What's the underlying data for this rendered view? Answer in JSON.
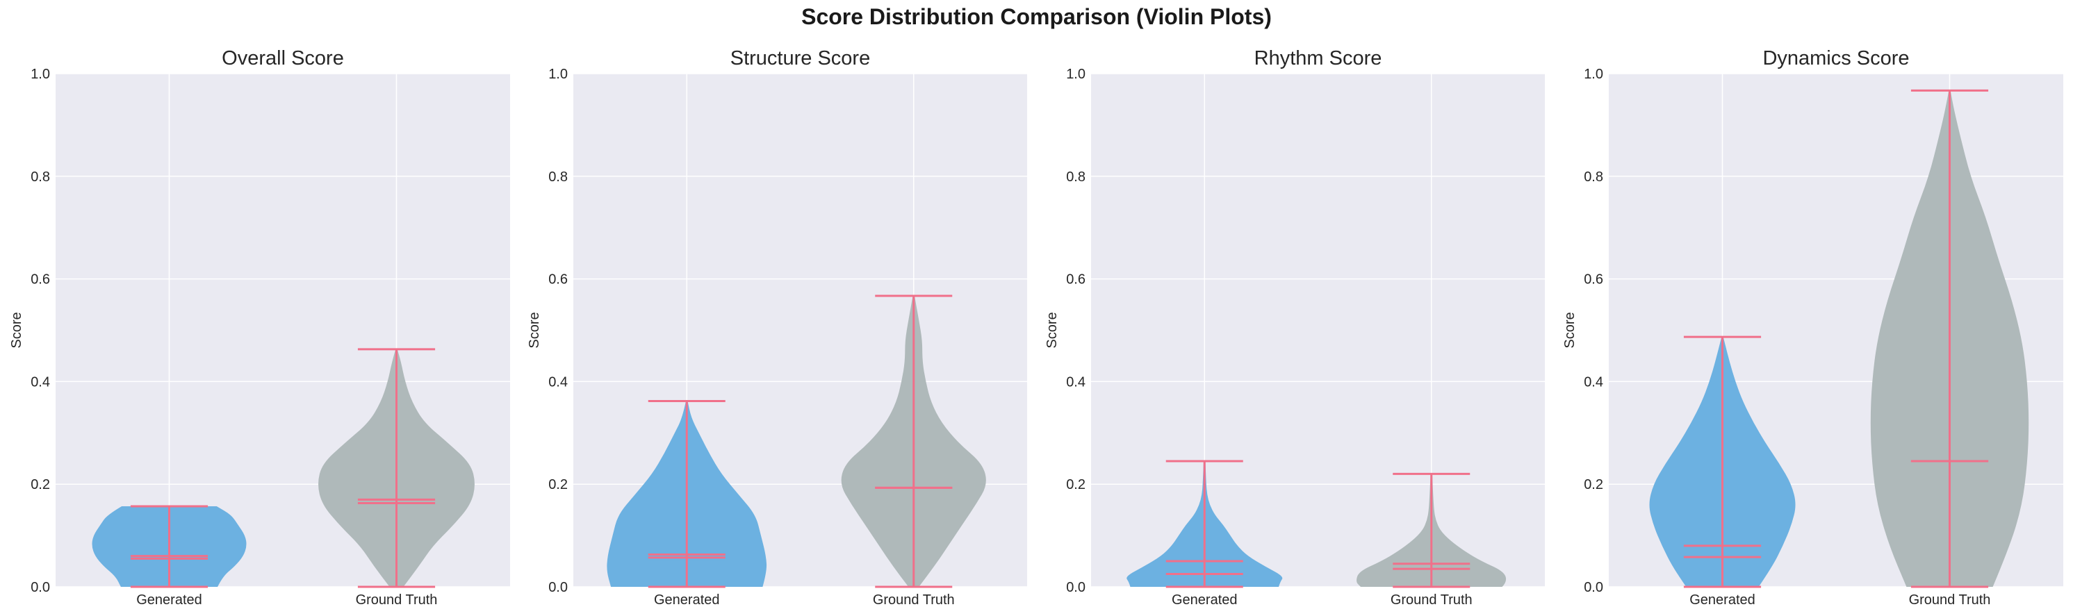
{
  "figure_title": "Score Distribution Comparison (Violin Plots)",
  "colors": {
    "plot_bg": "#eaeaf2",
    "grid": "#ffffff",
    "generated": "#6cb1e1",
    "ground_truth": "#afb9ba",
    "lines": "#f0708a",
    "text": "#262626"
  },
  "chart_data": [
    {
      "type": "violin",
      "title": "Overall Score",
      "ylabel": "Score",
      "ylim": [
        0,
        1
      ],
      "yticks": [
        "0.0",
        "0.2",
        "0.4",
        "0.6",
        "0.8",
        "1.0"
      ],
      "grid": true,
      "categories": [
        "Generated",
        "Ground Truth"
      ],
      "violins": [
        {
          "category": "Generated",
          "min": 0.0,
          "max": 0.157,
          "mean": 0.06,
          "median": 0.055,
          "density": [
            [
              0.0,
              0.56
            ],
            [
              0.02,
              0.62
            ],
            [
              0.04,
              0.76
            ],
            [
              0.06,
              0.86
            ],
            [
              0.08,
              0.9
            ],
            [
              0.1,
              0.88
            ],
            [
              0.12,
              0.8
            ],
            [
              0.14,
              0.72
            ],
            [
              0.157,
              0.55
            ]
          ]
        },
        {
          "category": "Ground Truth",
          "min": 0.0,
          "max": 0.463,
          "mean": 0.17,
          "median": 0.163,
          "density": [
            [
              0.0,
              0.08
            ],
            [
              0.04,
              0.26
            ],
            [
              0.08,
              0.42
            ],
            [
              0.12,
              0.66
            ],
            [
              0.16,
              0.86
            ],
            [
              0.2,
              0.92
            ],
            [
              0.24,
              0.86
            ],
            [
              0.28,
              0.6
            ],
            [
              0.32,
              0.32
            ],
            [
              0.36,
              0.18
            ],
            [
              0.4,
              0.1
            ],
            [
              0.44,
              0.05
            ],
            [
              0.463,
              0.01
            ]
          ]
        }
      ]
    },
    {
      "type": "violin",
      "title": "Structure Score",
      "ylabel": "Score",
      "ylim": [
        0,
        1
      ],
      "yticks": [
        "0.0",
        "0.2",
        "0.4",
        "0.6",
        "0.8",
        "1.0"
      ],
      "grid": true,
      "categories": [
        "Generated",
        "Ground Truth"
      ],
      "violins": [
        {
          "category": "Generated",
          "min": 0.0,
          "max": 0.362,
          "mean": 0.063,
          "median": 0.057,
          "density": [
            [
              0.0,
              0.88
            ],
            [
              0.03,
              0.93
            ],
            [
              0.06,
              0.92
            ],
            [
              0.1,
              0.86
            ],
            [
              0.14,
              0.8
            ],
            [
              0.18,
              0.6
            ],
            [
              0.22,
              0.4
            ],
            [
              0.26,
              0.26
            ],
            [
              0.3,
              0.14
            ],
            [
              0.33,
              0.05
            ],
            [
              0.362,
              0.01
            ]
          ]
        },
        {
          "category": "Ground Truth",
          "min": 0.0,
          "max": 0.567,
          "mean": 0.193,
          "median": 0.193,
          "density": [
            [
              0.0,
              0.06
            ],
            [
              0.04,
              0.24
            ],
            [
              0.08,
              0.4
            ],
            [
              0.12,
              0.56
            ],
            [
              0.16,
              0.72
            ],
            [
              0.2,
              0.86
            ],
            [
              0.24,
              0.8
            ],
            [
              0.28,
              0.52
            ],
            [
              0.32,
              0.32
            ],
            [
              0.36,
              0.2
            ],
            [
              0.4,
              0.14
            ],
            [
              0.44,
              0.1
            ],
            [
              0.48,
              0.1
            ],
            [
              0.52,
              0.06
            ],
            [
              0.567,
              0.01
            ]
          ]
        }
      ]
    },
    {
      "type": "violin",
      "title": "Rhythm Score",
      "ylabel": "Score",
      "ylim": [
        0,
        1
      ],
      "yticks": [
        "0.0",
        "0.2",
        "0.4",
        "0.6",
        "0.8",
        "1.0"
      ],
      "grid": true,
      "categories": [
        "Generated",
        "Ground Truth"
      ],
      "violins": [
        {
          "category": "Generated",
          "min": 0.0,
          "max": 0.245,
          "mean": 0.05,
          "median": 0.025,
          "density": [
            [
              0.0,
              0.86
            ],
            [
              0.01,
              0.88
            ],
            [
              0.02,
              0.92
            ],
            [
              0.04,
              0.7
            ],
            [
              0.06,
              0.5
            ],
            [
              0.08,
              0.38
            ],
            [
              0.1,
              0.3
            ],
            [
              0.12,
              0.22
            ],
            [
              0.14,
              0.12
            ],
            [
              0.16,
              0.06
            ],
            [
              0.18,
              0.03
            ],
            [
              0.2,
              0.02
            ],
            [
              0.245,
              0.01
            ]
          ]
        },
        {
          "category": "Ground Truth",
          "min": 0.0,
          "max": 0.22,
          "mean": 0.045,
          "median": 0.035,
          "density": [
            [
              0.0,
              0.82
            ],
            [
              0.01,
              0.88
            ],
            [
              0.03,
              0.84
            ],
            [
              0.05,
              0.58
            ],
            [
              0.07,
              0.38
            ],
            [
              0.09,
              0.22
            ],
            [
              0.11,
              0.1
            ],
            [
              0.13,
              0.05
            ],
            [
              0.15,
              0.03
            ],
            [
              0.18,
              0.02
            ],
            [
              0.22,
              0.01
            ]
          ]
        }
      ]
    },
    {
      "type": "violin",
      "title": "Dynamics Score",
      "ylabel": "Score",
      "ylim": [
        0,
        1
      ],
      "yticks": [
        "0.0",
        "0.2",
        "0.4",
        "0.6",
        "0.8",
        "1.0"
      ],
      "grid": true,
      "categories": [
        "Generated",
        "Ground Truth"
      ],
      "violins": [
        {
          "category": "Generated",
          "min": 0.0,
          "max": 0.487,
          "mean": 0.08,
          "median": 0.058,
          "density": [
            [
              0.0,
              0.42
            ],
            [
              0.04,
              0.58
            ],
            [
              0.08,
              0.7
            ],
            [
              0.12,
              0.8
            ],
            [
              0.16,
              0.86
            ],
            [
              0.2,
              0.8
            ],
            [
              0.24,
              0.66
            ],
            [
              0.28,
              0.5
            ],
            [
              0.32,
              0.36
            ],
            [
              0.36,
              0.24
            ],
            [
              0.4,
              0.15
            ],
            [
              0.44,
              0.08
            ],
            [
              0.487,
              0.01
            ]
          ]
        },
        {
          "category": "Ground Truth",
          "min": 0.0,
          "max": 0.967,
          "mean": 0.245,
          "median": 0.245,
          "density": [
            [
              0.0,
              0.5
            ],
            [
              0.08,
              0.7
            ],
            [
              0.16,
              0.84
            ],
            [
              0.24,
              0.9
            ],
            [
              0.32,
              0.92
            ],
            [
              0.4,
              0.9
            ],
            [
              0.48,
              0.84
            ],
            [
              0.56,
              0.72
            ],
            [
              0.64,
              0.56
            ],
            [
              0.72,
              0.42
            ],
            [
              0.8,
              0.24
            ],
            [
              0.88,
              0.12
            ],
            [
              0.93,
              0.05
            ],
            [
              0.967,
              0.01
            ]
          ]
        }
      ]
    }
  ]
}
